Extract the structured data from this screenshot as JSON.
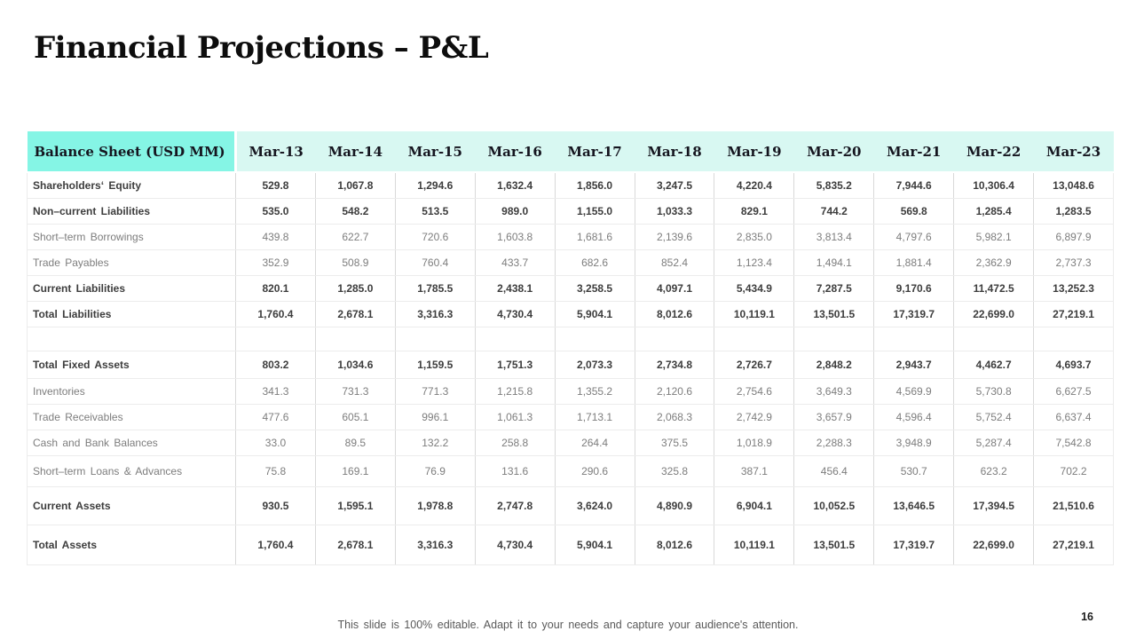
{
  "slide": {
    "title": "Financial Projections – P&L",
    "footer": "This slide is 100% editable. Adapt it to your needs and capture your audience's attention.",
    "page_number": "16"
  },
  "table": {
    "header": {
      "label": "Balance Sheet (USD MM)",
      "columns": [
        "Mar-13",
        "Mar-14",
        "Mar-15",
        "Mar-16",
        "Mar-17",
        "Mar-18",
        "Mar-19",
        "Mar-20",
        "Mar-21",
        "Mar-22",
        "Mar-23"
      ]
    },
    "rows": [
      {
        "label": "Shareholders‘ Equity",
        "bold": true,
        "values": [
          "529.8",
          "1,067.8",
          "1,294.6",
          "1,632.4",
          "1,856.0",
          "3,247.5",
          "4,220.4",
          "5,835.2",
          "7,944.6",
          "10,306.4",
          "13,048.6"
        ]
      },
      {
        "label": "Non–current Liabilities",
        "bold": true,
        "values": [
          "535.0",
          "548.2",
          "513.5",
          "989.0",
          "1,155.0",
          "1,033.3",
          "829.1",
          "744.2",
          "569.8",
          "1,285.4",
          "1,283.5"
        ]
      },
      {
        "label": "Short–term Borrowings",
        "bold": false,
        "values": [
          "439.8",
          "622.7",
          "720.6",
          "1,603.8",
          "1,681.6",
          "2,139.6",
          "2,835.0",
          "3,813.4",
          "4,797.6",
          "5,982.1",
          "6,897.9"
        ]
      },
      {
        "label": "Trade Payables",
        "bold": false,
        "values": [
          "352.9",
          "508.9",
          "760.4",
          "433.7",
          "682.6",
          "852.4",
          "1,123.4",
          "1,494.1",
          "1,881.4",
          "2,362.9",
          "2,737.3"
        ]
      },
      {
        "label": "Current Liabilities",
        "bold": true,
        "values": [
          "820.1",
          "1,285.0",
          "1,785.5",
          "2,438.1",
          "3,258.5",
          "4,097.1",
          "5,434.9",
          "7,287.5",
          "9,170.6",
          "11,472.5",
          "13,252.3"
        ]
      },
      {
        "label": "Total Liabilities",
        "bold": true,
        "values": [
          "1,760.4",
          "2,678.1",
          "3,316.3",
          "4,730.4",
          "5,904.1",
          "8,012.6",
          "10,119.1",
          "13,501.5",
          "17,319.7",
          "22,699.0",
          "27,219.1"
        ]
      },
      {
        "spacer": true
      },
      {
        "label": "Total Fixed Assets",
        "bold": true,
        "values": [
          "803.2",
          "1,034.6",
          "1,159.5",
          "1,751.3",
          "2,073.3",
          "2,734.8",
          "2,726.7",
          "2,848.2",
          "2,943.7",
          "4,462.7",
          "4,693.7"
        ]
      },
      {
        "label": "Inventories",
        "bold": false,
        "values": [
          "341.3",
          "731.3",
          "771.3",
          "1,215.8",
          "1,355.2",
          "2,120.6",
          "2,754.6",
          "3,649.3",
          "4,569.9",
          "5,730.8",
          "6,627.5"
        ]
      },
      {
        "label": "Trade Receivables",
        "bold": false,
        "values": [
          "477.6",
          "605.1",
          "996.1",
          "1,061.3",
          "1,713.1",
          "2,068.3",
          "2,742.9",
          "3,657.9",
          "4,596.4",
          "5,752.4",
          "6,637.4"
        ]
      },
      {
        "label": "Cash and Bank Balances",
        "bold": false,
        "values": [
          "33.0",
          "89.5",
          "132.2",
          "258.8",
          "264.4",
          "375.5",
          "1,018.9",
          "2,288.3",
          "3,948.9",
          "5,287.4",
          "7,542.8"
        ]
      },
      {
        "label": "Short–term Loans & Advances",
        "bold": false,
        "values": [
          "75.8",
          "169.1",
          "76.9",
          "131.6",
          "290.6",
          "325.8",
          "387.1",
          "456.4",
          "530.7",
          "623.2",
          "702.2"
        ]
      },
      {
        "label": "Current Assets",
        "bold": true,
        "values": [
          "930.5",
          "1,595.1",
          "1,978.8",
          "2,747.8",
          "3,624.0",
          "4,890.9",
          "6,904.1",
          "10,052.5",
          "13,646.5",
          "17,394.5",
          "21,510.6"
        ]
      },
      {
        "label": "Total Assets",
        "bold": true,
        "values": [
          "1,760.4",
          "2,678.1",
          "3,316.3",
          "4,730.4",
          "5,904.1",
          "8,012.6",
          "10,119.1",
          "13,501.5",
          "17,319.7",
          "22,699.0",
          "27,219.1"
        ]
      }
    ]
  },
  "colors": {
    "header_accent": "#85f5e5",
    "header_bg": "#d8f8f2",
    "bold_text": "#3d3d3d",
    "normal_text": "#7d7d7d",
    "footer_text": "#595959"
  }
}
